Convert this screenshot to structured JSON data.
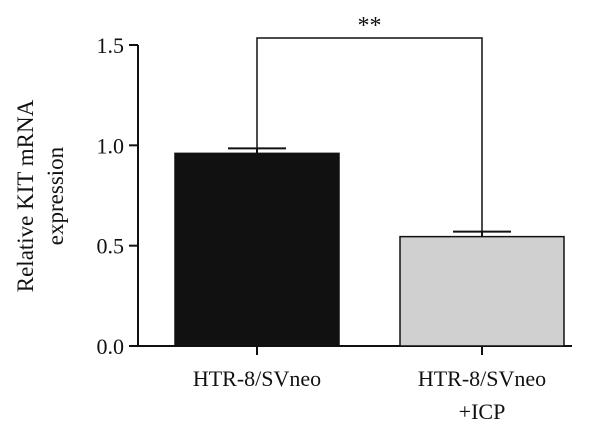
{
  "chart_data": {
    "type": "bar",
    "title": "",
    "xlabel": "",
    "ylabel": [
      "Relative KIT mRNA",
      "expression"
    ],
    "ylim": [
      0,
      1.5
    ],
    "yticks": [
      "0.0",
      "0.5",
      "1.0",
      "1.5"
    ],
    "ytick_values": [
      0,
      0.5,
      1.0,
      1.5
    ],
    "categories": [
      [
        "HTR-8/SVneo"
      ],
      [
        "HTR-8/SVneo",
        "+ICP"
      ]
    ],
    "values": [
      0.96,
      0.545
    ],
    "errors": [
      0.025,
      0.025
    ],
    "bar_colors": [
      "#111111",
      "#d0d0d0"
    ],
    "significance": {
      "label": "**",
      "between": [
        0,
        1
      ],
      "level": 1.55
    },
    "grid": false,
    "legend": "none"
  }
}
